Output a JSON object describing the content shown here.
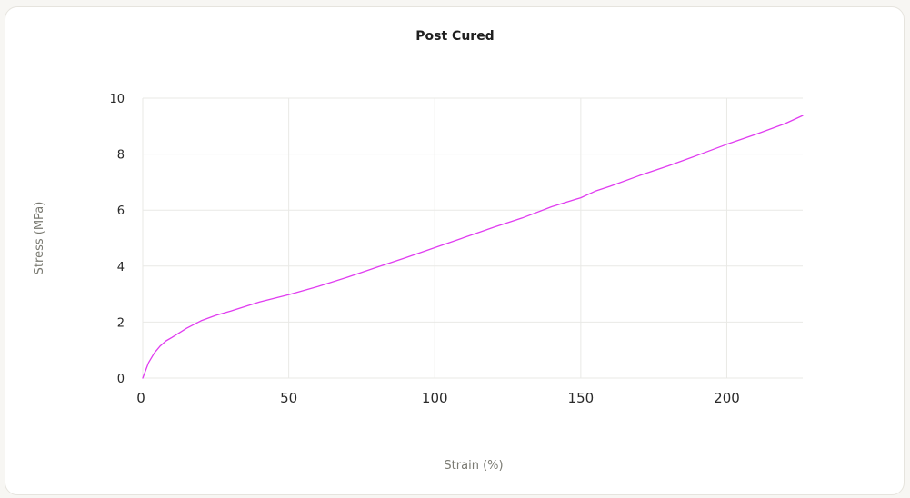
{
  "chart_data": {
    "type": "line",
    "title": "Post Cured",
    "xlabel": "Strain (%)",
    "ylabel": "Stress (MPa)",
    "xlim": [
      0,
      226
    ],
    "ylim": [
      0,
      10
    ],
    "x_ticks": [
      0,
      50,
      100,
      150,
      200
    ],
    "y_ticks": [
      0,
      2,
      4,
      6,
      8,
      10
    ],
    "grid": true,
    "line_color": "#e03cf0",
    "series": [
      {
        "x": [
          0,
          2,
          4,
          6,
          8,
          10,
          15,
          20,
          25,
          30,
          40,
          50,
          60,
          70,
          80,
          90,
          100,
          110,
          120,
          130,
          140,
          150,
          155,
          160,
          170,
          180,
          190,
          200,
          210,
          220,
          226
        ],
        "y": [
          0,
          0.55,
          0.9,
          1.15,
          1.33,
          1.45,
          1.78,
          2.05,
          2.24,
          2.39,
          2.72,
          2.98,
          3.27,
          3.6,
          3.95,
          4.3,
          4.66,
          5.02,
          5.38,
          5.72,
          6.12,
          6.44,
          6.68,
          6.85,
          7.23,
          7.58,
          7.96,
          8.35,
          8.71,
          9.09,
          9.38
        ]
      }
    ]
  }
}
